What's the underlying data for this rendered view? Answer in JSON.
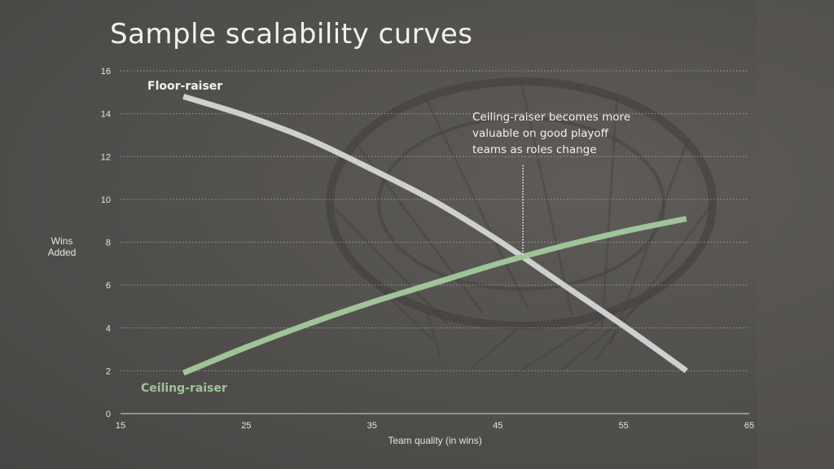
{
  "slide": {
    "title": "Sample scalability curves"
  },
  "colors": {
    "floor": "#cfcfcf",
    "ceiling": "#9fc498",
    "floor_label": "#f2f2f2",
    "ceiling_label": "#9fc498",
    "grid": "#a9a6a2",
    "annotation_line": "#ffffff"
  },
  "chart_data": {
    "type": "line",
    "title": "Sample scalability curves",
    "xlabel": "Team quality (in wins)",
    "ylabel": "Wins Added",
    "ylabel_lines": [
      "Wins",
      "Added"
    ],
    "xlim": [
      15,
      65
    ],
    "ylim": [
      0,
      16
    ],
    "x_ticks": [
      15,
      25,
      35,
      45,
      55,
      65
    ],
    "y_ticks": [
      0,
      2,
      4,
      6,
      8,
      10,
      12,
      14,
      16
    ],
    "grid": "horizontal dotted",
    "series": [
      {
        "name": "Floor-raiser",
        "x": [
          20,
          25,
          30,
          35,
          40,
          45,
          50,
          55,
          60
        ],
        "values": [
          14.8,
          13.9,
          12.8,
          11.4,
          9.9,
          8.1,
          6.1,
          4.1,
          2.0
        ]
      },
      {
        "name": "Ceiling-raiser",
        "x": [
          20,
          25,
          30,
          35,
          40,
          45,
          50,
          55,
          60
        ],
        "values": [
          1.9,
          3.1,
          4.2,
          5.2,
          6.1,
          7.0,
          7.8,
          8.5,
          9.1
        ]
      }
    ],
    "annotations": [
      {
        "lines": [
          "Ceiling-raiser becomes more",
          "valuable on good playoff",
          "teams as roles change"
        ],
        "x": 47,
        "y_from": 7.4,
        "y_to": 11.6
      }
    ]
  }
}
